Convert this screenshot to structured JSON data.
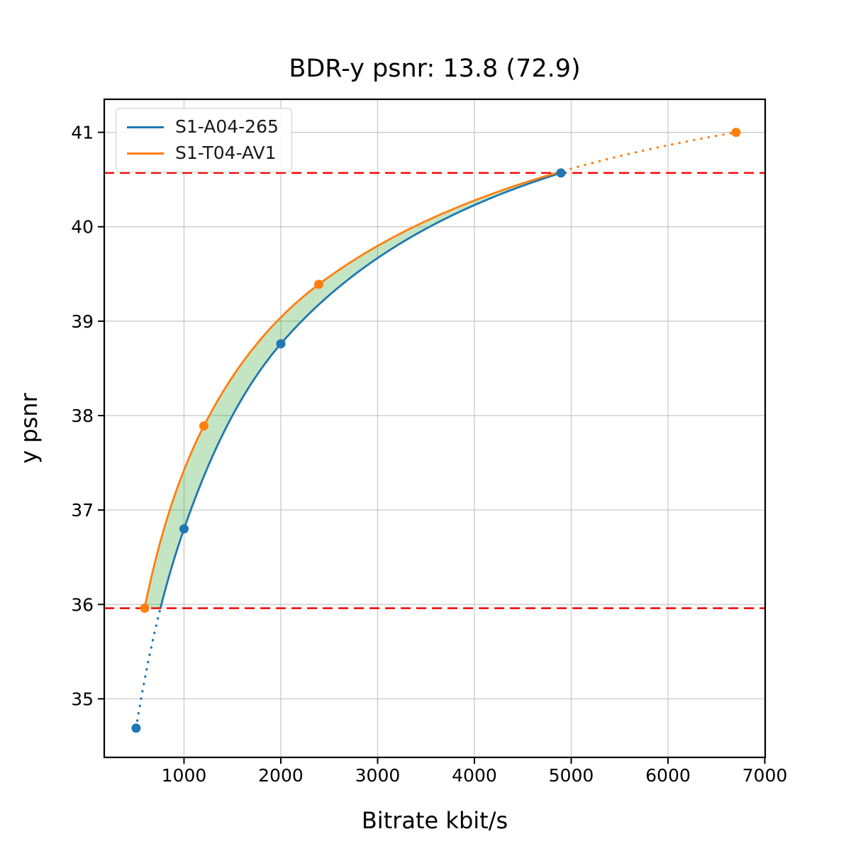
{
  "figure": {
    "background": "#ffffff"
  },
  "chart_data": {
    "type": "line",
    "title": "BDR-y psnr: 13.8 (72.9)",
    "xlabel": "Bitrate kbit/s",
    "ylabel": "y psnr",
    "xlim": [
      176,
      7004
    ],
    "ylim": [
      34.38,
      41.35
    ],
    "xticks": [
      1000,
      2000,
      3000,
      4000,
      5000,
      6000,
      7000
    ],
    "yticks": [
      35,
      36,
      37,
      38,
      39,
      40,
      41
    ],
    "grid": true,
    "grid_color": "#c6c6c6",
    "legend_position": "upper left",
    "series": [
      {
        "name": "S1-A04-265",
        "color": "#1f77b4",
        "points": [
          [
            505,
            34.69
          ],
          [
            1000,
            36.8
          ],
          [
            2000,
            38.76
          ],
          [
            4894,
            40.57
          ]
        ]
      },
      {
        "name": "S1-T04-AV1",
        "color": "#ff7f0e",
        "points": [
          [
            593,
            35.96
          ],
          [
            1205,
            37.89
          ],
          [
            2392,
            39.39
          ],
          [
            6703,
            41.0
          ]
        ]
      }
    ],
    "integration_bounds": {
      "lower_y": 35.96,
      "upper_y": 40.57,
      "line_color": "#ff0000",
      "line_style": "dashed"
    },
    "fill_between": {
      "from_y": 35.96,
      "to_y": 40.57,
      "color": "rgba(44,160,44,0.28)"
    },
    "extrapolation_line_style": "dotted"
  }
}
